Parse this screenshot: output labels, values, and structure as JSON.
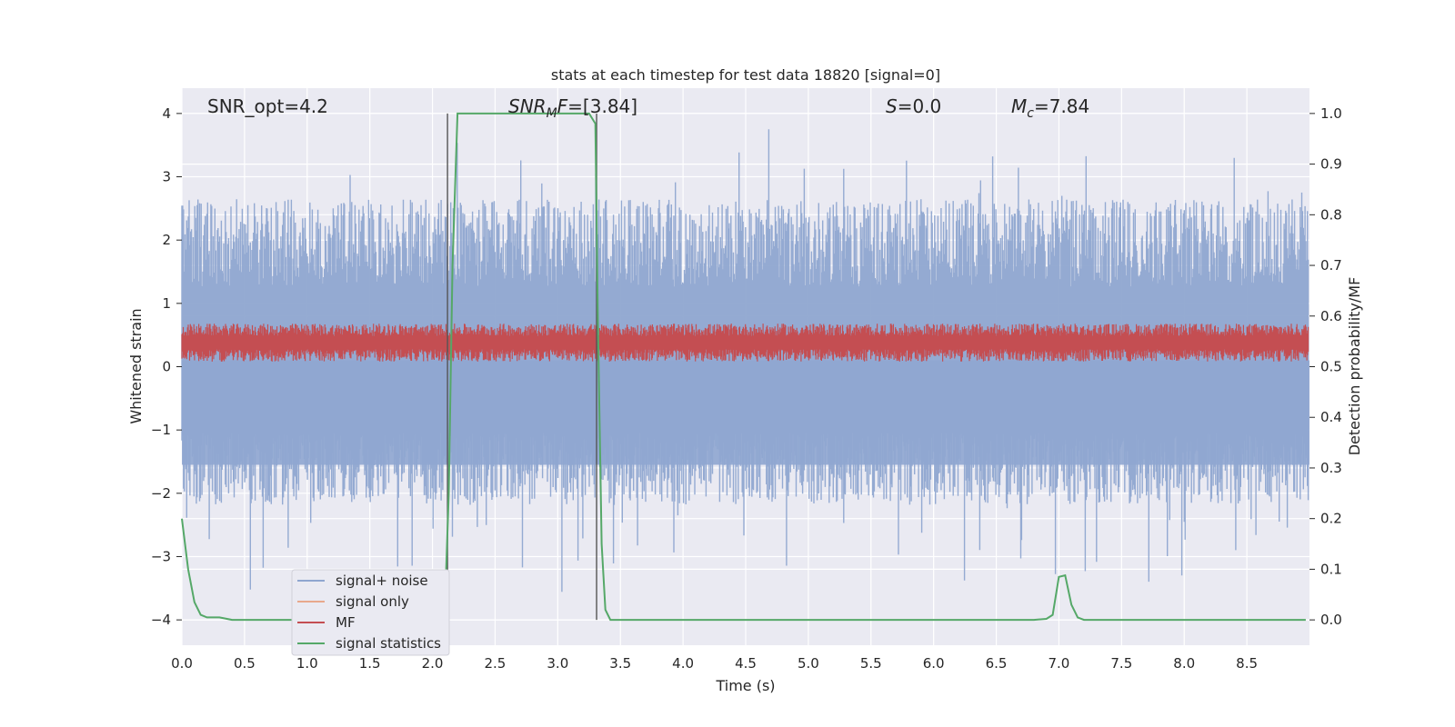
{
  "chart_data": {
    "type": "line",
    "title": "stats at each timestep for test data 18820 [signal=0]",
    "xlabel": "Time (s)",
    "ylabel": "Whitened strain",
    "ylabel_right": "Detection probability/MF",
    "xlim": [
      0,
      9.0
    ],
    "ylim": [
      -4.4,
      4.4
    ],
    "ylim_right": [
      -0.05,
      1.05
    ],
    "x_ticks": [
      0.0,
      0.5,
      1.0,
      1.5,
      2.0,
      2.5,
      3.0,
      3.5,
      4.0,
      4.5,
      5.0,
      5.5,
      6.0,
      6.5,
      7.0,
      7.5,
      8.0,
      8.5
    ],
    "x_tick_labels": [
      "0.0",
      "0.5",
      "1.0",
      "1.5",
      "2.0",
      "2.5",
      "3.0",
      "3.5",
      "4.0",
      "4.5",
      "5.0",
      "5.5",
      "6.0",
      "6.5",
      "7.0",
      "7.5",
      "8.0",
      "8.5"
    ],
    "y_ticks": [
      -4,
      -3,
      -2,
      -1,
      0,
      1,
      2,
      3,
      4
    ],
    "y_tick_labels": [
      "−4",
      "−3",
      "−2",
      "−1",
      "0",
      "1",
      "2",
      "3",
      "4"
    ],
    "y_ticks_right": [
      0.0,
      0.1,
      0.2,
      0.3,
      0.4,
      0.5,
      0.6,
      0.7,
      0.8,
      0.9,
      1.0
    ],
    "y_tick_labels_right": [
      "0.0",
      "0.1",
      "0.2",
      "0.3",
      "0.4",
      "0.5",
      "0.6",
      "0.7",
      "0.8",
      "0.9",
      "1.0"
    ],
    "annotations": {
      "snr_opt": "SNR_opt=4.2",
      "snr_mf_main": "SNR",
      "snr_mf_sub": "M",
      "snr_mf_rest": "F",
      "snr_mf_value": "=[3.84]",
      "s_label": "S",
      "s_value": "=0.0",
      "mc_label": "M",
      "mc_sub": "c",
      "mc_value": "=7.84"
    },
    "vertical_lines": [
      2.12,
      3.31
    ],
    "noise_band": {
      "upper_typical": 2.3,
      "lower_typical": -1.9,
      "max": 4.0,
      "min": -4.0
    },
    "mf_band": {
      "center": 0.38,
      "half_width": 0.3
    },
    "series": [
      {
        "name": "signal+ noise",
        "color": "#8fa6d0",
        "axis": "left"
      },
      {
        "name": "signal only",
        "color": "#e8a88c",
        "axis": "left"
      },
      {
        "name": "MF",
        "color": "#c44e52",
        "axis": "left"
      },
      {
        "name": "signal statistics",
        "color": "#55a868",
        "axis": "right",
        "x": [
          0.0,
          0.05,
          0.1,
          0.15,
          0.2,
          0.3,
          0.4,
          0.5,
          1.0,
          1.5,
          2.0,
          2.05,
          2.1,
          2.13,
          2.16,
          2.2,
          3.0,
          3.25,
          3.3,
          3.32,
          3.35,
          3.38,
          3.42,
          3.5,
          4.0,
          6.0,
          6.8,
          6.9,
          6.95,
          7.0,
          7.05,
          7.1,
          7.15,
          7.2,
          7.3,
          8.0,
          8.97
        ],
        "values": [
          0.2,
          0.1,
          0.035,
          0.01,
          0.005,
          0.005,
          0.0,
          0.0,
          0.0,
          0.0,
          0.0,
          0.0,
          0.03,
          0.25,
          0.7,
          1.0,
          1.0,
          1.0,
          0.98,
          0.6,
          0.15,
          0.02,
          0.0,
          0.0,
          0.0,
          0.0,
          0.0,
          0.002,
          0.01,
          0.085,
          0.088,
          0.03,
          0.005,
          0.0,
          0.0,
          0.0,
          0.0
        ]
      }
    ]
  }
}
